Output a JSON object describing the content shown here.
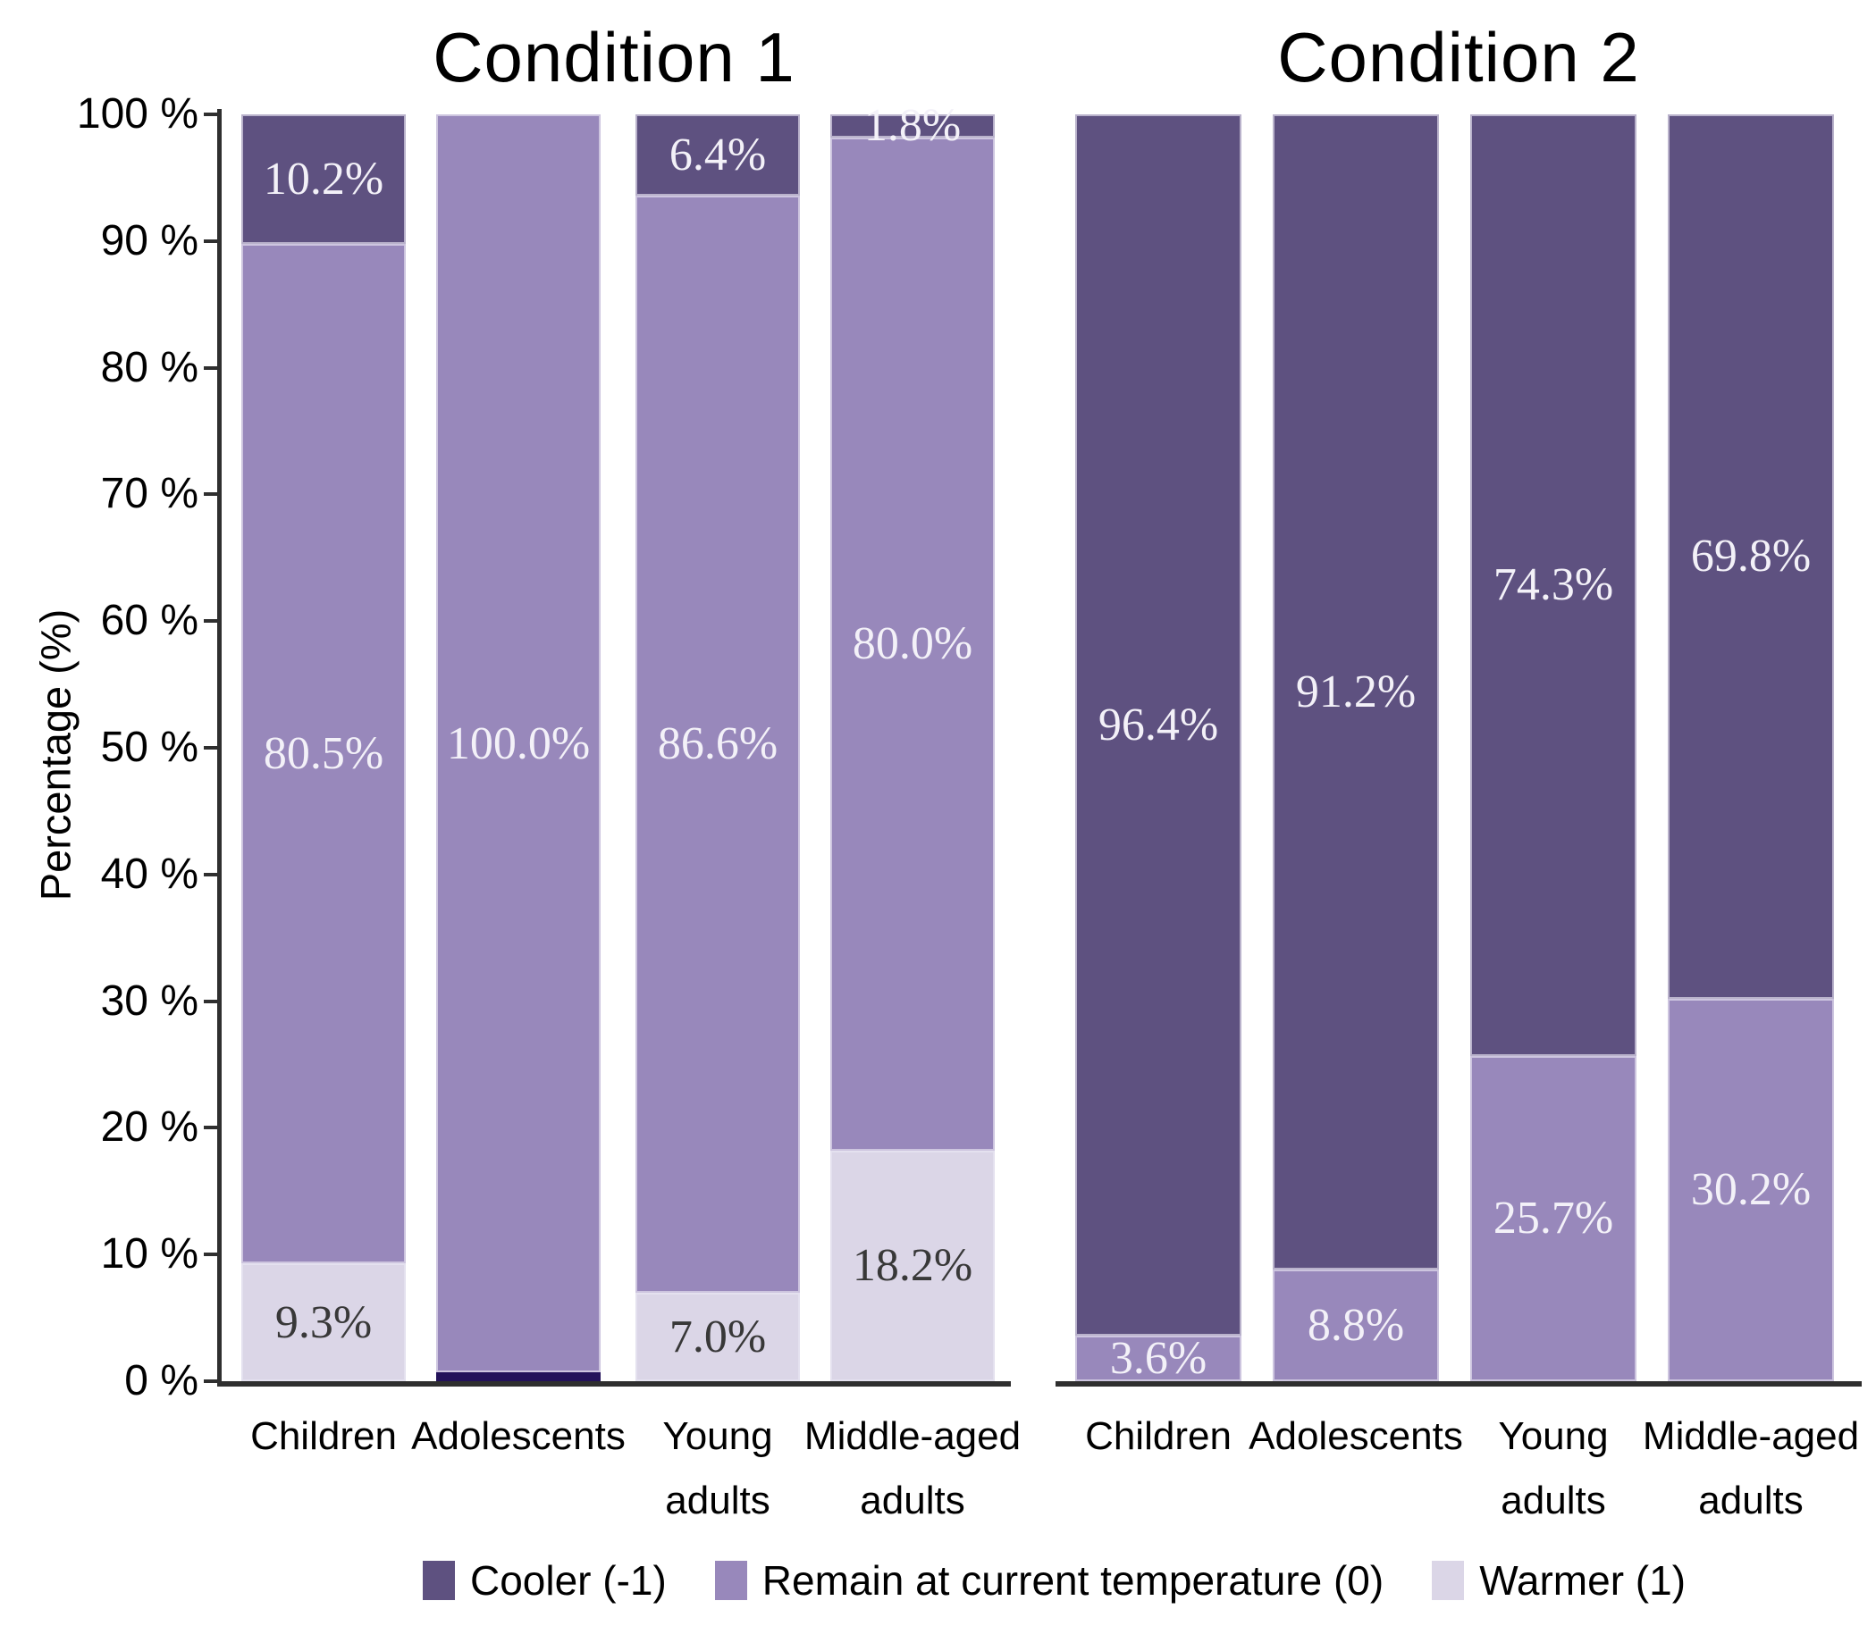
{
  "figure": {
    "ylabel": "Percentage (%)",
    "yticks": [
      "100 %",
      "90 %",
      "80 %",
      "70 %",
      "60 %",
      "50 %",
      "40 %",
      "30 %",
      "20 %",
      "10 %",
      "0 %"
    ],
    "colors": {
      "cooler": "#5e5180",
      "remain": "#9888bb",
      "warmer": "#dbd6e7",
      "baseline_sliver": "#23125a",
      "axis": "#2f2f2f",
      "label_on_dark": "#f3f1f8",
      "label_on_light": "#383838"
    },
    "legend": [
      {
        "key": "cooler",
        "label": "Cooler (-1)",
        "color": "#5e5180"
      },
      {
        "key": "remain",
        "label": "Remain at current temperature (0)",
        "color": "#9888bb"
      },
      {
        "key": "warmer",
        "label": "Warmer (1)",
        "color": "#dbd6e7"
      }
    ]
  },
  "chart_data": {
    "type": "bar",
    "stacked": true,
    "unit": "percent",
    "ylabel": "Percentage (%)",
    "ylim": [
      0,
      100
    ],
    "ytick_step": 10,
    "grid": false,
    "legend_position": "bottom",
    "series_names": [
      "Cooler (-1)",
      "Remain at current temperature (0)",
      "Warmer (1)"
    ],
    "panels": [
      {
        "title": "Condition 1",
        "categories": [
          "Children",
          "Adolescents",
          "Young adults",
          "Middle-aged adults"
        ],
        "series": [
          {
            "name": "Cooler (-1)",
            "key": "cooler",
            "values": [
              10.2,
              0.0,
              6.4,
              1.8
            ]
          },
          {
            "name": "Remain at current temperature (0)",
            "key": "remain",
            "values": [
              80.5,
              100.0,
              86.6,
              80.0
            ]
          },
          {
            "name": "Warmer (1)",
            "key": "warmer",
            "values": [
              9.3,
              0.0,
              7.0,
              18.2
            ]
          }
        ],
        "bottom_sliver": {
          "bar_index": 1,
          "height_pct": 0.7
        }
      },
      {
        "title": "Condition 2",
        "categories": [
          "Children",
          "Adolescents",
          "Young adults",
          "Middle-aged adults"
        ],
        "series": [
          {
            "name": "Cooler (-1)",
            "key": "cooler",
            "values": [
              96.4,
              91.2,
              74.3,
              69.8
            ]
          },
          {
            "name": "Remain at current temperature (0)",
            "key": "remain",
            "values": [
              3.6,
              8.8,
              25.7,
              30.2
            ]
          },
          {
            "name": "Warmer (1)",
            "key": "warmer",
            "values": [
              0.0,
              0.0,
              0.0,
              0.0
            ]
          }
        ]
      }
    ]
  }
}
